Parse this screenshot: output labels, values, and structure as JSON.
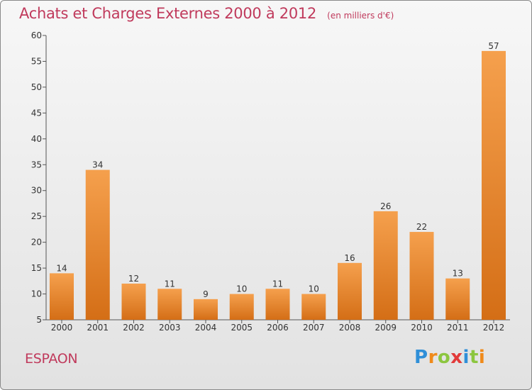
{
  "chart_data": {
    "type": "bar",
    "title": "Achats et Charges Externes 2000 à 2012",
    "subtitle": "(en milliers d'€)",
    "categories": [
      "2000",
      "2001",
      "2002",
      "2003",
      "2004",
      "2005",
      "2006",
      "2007",
      "2008",
      "2009",
      "2010",
      "2011",
      "2012"
    ],
    "values": [
      14,
      34,
      12,
      11,
      9,
      10,
      11,
      10,
      16,
      26,
      22,
      13,
      57
    ],
    "ylim": [
      5,
      60
    ],
    "yticks": [
      5,
      10,
      15,
      20,
      25,
      30,
      35,
      40,
      45,
      50,
      55,
      60
    ],
    "grid": false,
    "legend": "none",
    "bar_color_top": "#f5a04d",
    "bar_color_bottom": "#d46e16"
  },
  "footer": {
    "commune": "ESPAON"
  },
  "logo": {
    "letters": [
      "P",
      "r",
      "o",
      "x",
      "i",
      "t",
      "i"
    ],
    "colors": [
      "#2f8fd8",
      "#f08a1a",
      "#8cc63f",
      "#e23a3a",
      "#2f8fd8",
      "#8cc63f",
      "#f08a1a"
    ]
  }
}
